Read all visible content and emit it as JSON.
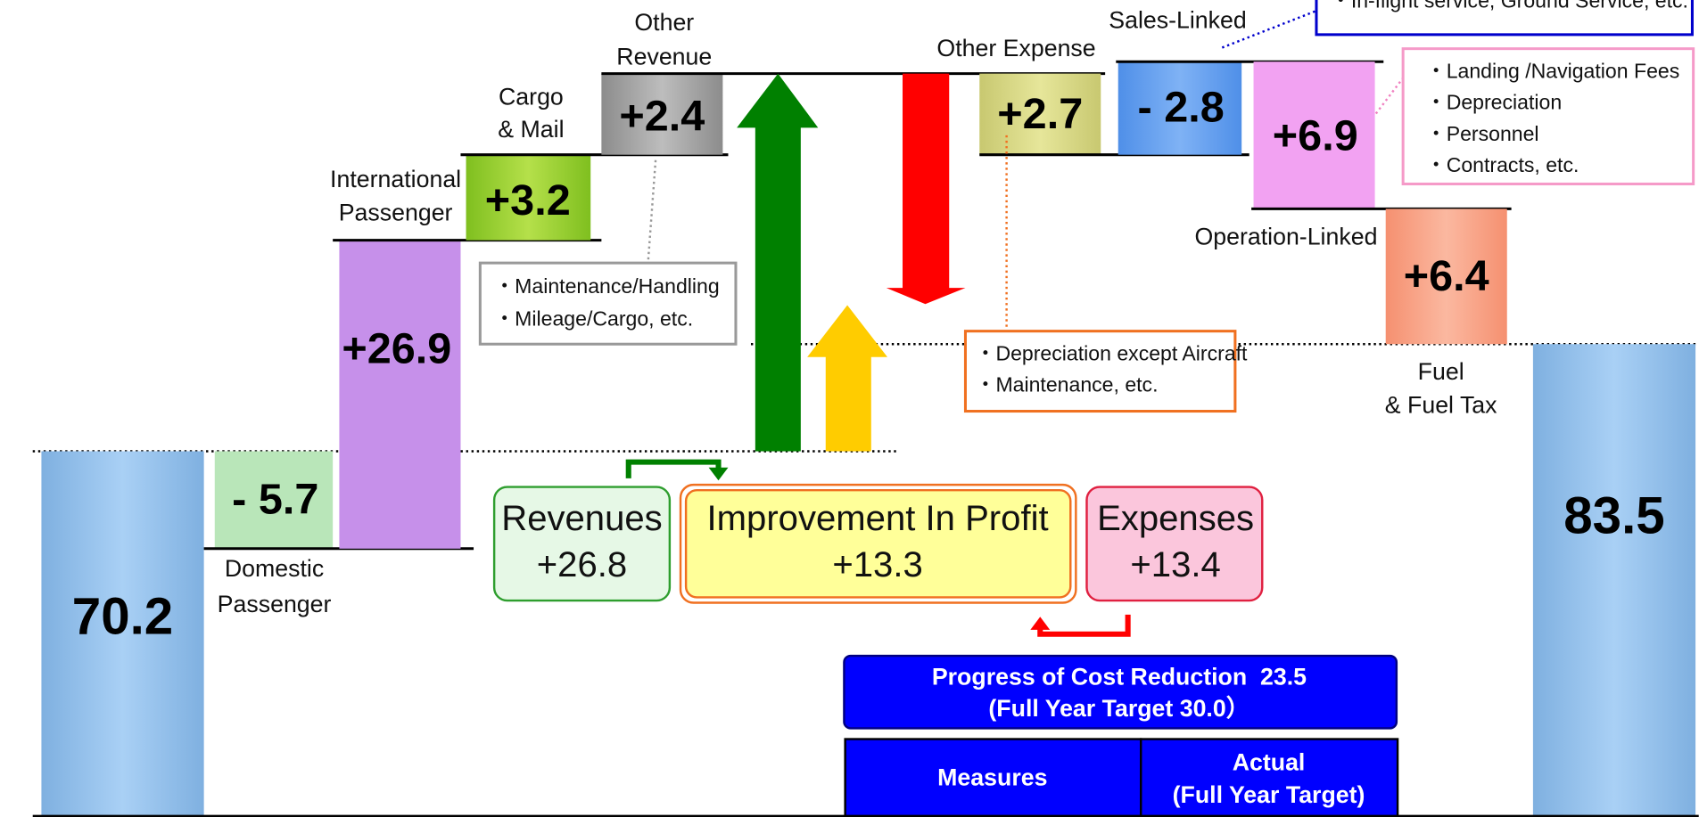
{
  "start": {
    "value": "70.2"
  },
  "end": {
    "value": "83.5"
  },
  "bars": [
    {
      "label": [
        "Domestic",
        "Passenger"
      ],
      "value": "- 5.7"
    },
    {
      "label": [
        "International",
        "Passenger"
      ],
      "value": "+26.9"
    },
    {
      "label": [
        "Cargo",
        "& Mail"
      ],
      "value": "+3.2"
    },
    {
      "label": [
        "Other",
        "Revenue"
      ],
      "value": "+2.4"
    },
    {
      "label": [
        "Other Expense"
      ],
      "value": "+2.7"
    },
    {
      "label": [
        "Sales-Linked"
      ],
      "value": "- 2.8"
    },
    {
      "label": [
        "Operation-Linked"
      ],
      "value": "+6.9"
    },
    {
      "label": [
        "Fuel",
        "& Fuel Tax"
      ],
      "value": "+6.4"
    }
  ],
  "notes": {
    "sales": [
      "・In-flight service, Ground Service, etc."
    ],
    "operation": [
      "・Landing /Navigation Fees",
      "・Depreciation",
      "・Personnel",
      "・Contracts, etc."
    ],
    "other_revenue": [
      "・Maintenance/Handling",
      "・Mileage/Cargo, etc."
    ],
    "other_expense": [
      "・Depreciation except Aircraft",
      "・Maintenance, etc."
    ]
  },
  "summary": {
    "revenues": {
      "title": "Revenues",
      "value": "+26.8"
    },
    "profit": {
      "title": "Improvement In Profit",
      "value": "+13.3"
    },
    "expenses": {
      "title": "Expenses",
      "value": "+13.4"
    }
  },
  "cost_reduction": {
    "title": "Progress of Cost Reduction  23.5",
    "subtitle": "(Full Year Target 30.0）"
  },
  "table": {
    "headers": [
      [
        "Measures"
      ],
      [
        "Actual",
        "(Full Year Target)"
      ]
    ]
  }
}
